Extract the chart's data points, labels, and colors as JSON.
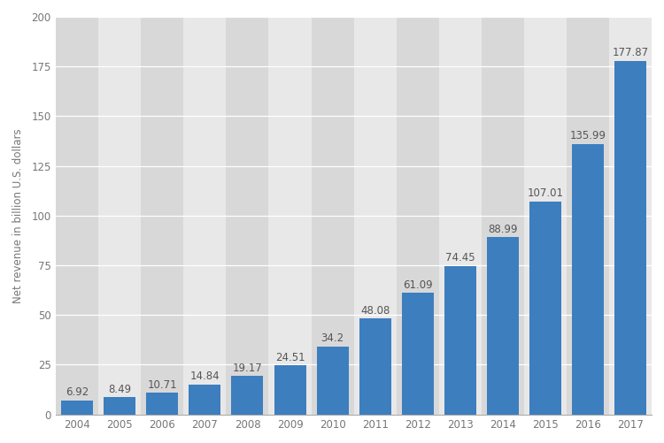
{
  "years": [
    "2004",
    "2005",
    "2006",
    "2007",
    "2008",
    "2009",
    "2010",
    "2011",
    "2012",
    "2013",
    "2014",
    "2015",
    "2016",
    "2017"
  ],
  "values": [
    6.92,
    8.49,
    10.71,
    14.84,
    19.17,
    24.51,
    34.2,
    48.08,
    61.09,
    74.45,
    88.99,
    107.01,
    135.99,
    177.87
  ],
  "bar_color": "#3d7ebf",
  "background_color": "#ffffff",
  "plot_bg_color_light": "#e8e8e8",
  "plot_bg_color_dark": "#d8d8d8",
  "ylabel": "Net revenue in billion U.S. dollars",
  "ylim": [
    0,
    200
  ],
  "yticks": [
    0,
    25,
    50,
    75,
    100,
    125,
    150,
    175,
    200
  ],
  "grid_color": "#ffffff",
  "tick_label_color": "#777777",
  "bar_label_color": "#555555",
  "label_fontsize": 8.5,
  "axis_fontsize": 8.5,
  "ylabel_fontsize": 8.5
}
